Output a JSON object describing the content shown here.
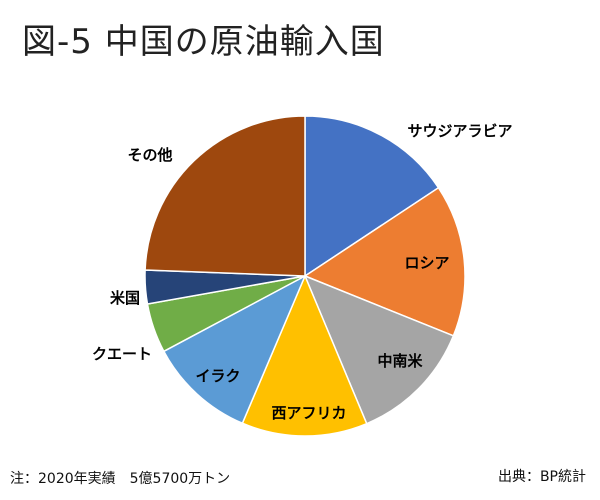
{
  "title": "図-5 中国の原油輸入国",
  "footnote": "注：2020年実績　5億5700万トン",
  "source": "出典：BP統計",
  "chart_data": {
    "type": "pie",
    "title": "図-5 中国の原油輸入国",
    "slices": [
      {
        "label": "サウジアラビア",
        "value": 15.7,
        "color": "#4472C4"
      },
      {
        "label": "ロシア",
        "value": 15.4,
        "color": "#ED7D31"
      },
      {
        "label": "中南米",
        "value": 12.6,
        "color": "#A5A5A5"
      },
      {
        "label": "西アフリカ",
        "value": 12.7,
        "color": "#FFC000"
      },
      {
        "label": "イラク",
        "value": 10.8,
        "color": "#5B9BD5"
      },
      {
        "label": "クエート",
        "value": 5.0,
        "color": "#70AD47"
      },
      {
        "label": "米国",
        "value": 3.4,
        "color": "#264478"
      },
      {
        "label": "その他",
        "value": 24.4,
        "color": "#9E480E"
      }
    ],
    "start_angle_deg": 0,
    "direction": "clockwise",
    "legend": "none",
    "data_labels": "category"
  }
}
